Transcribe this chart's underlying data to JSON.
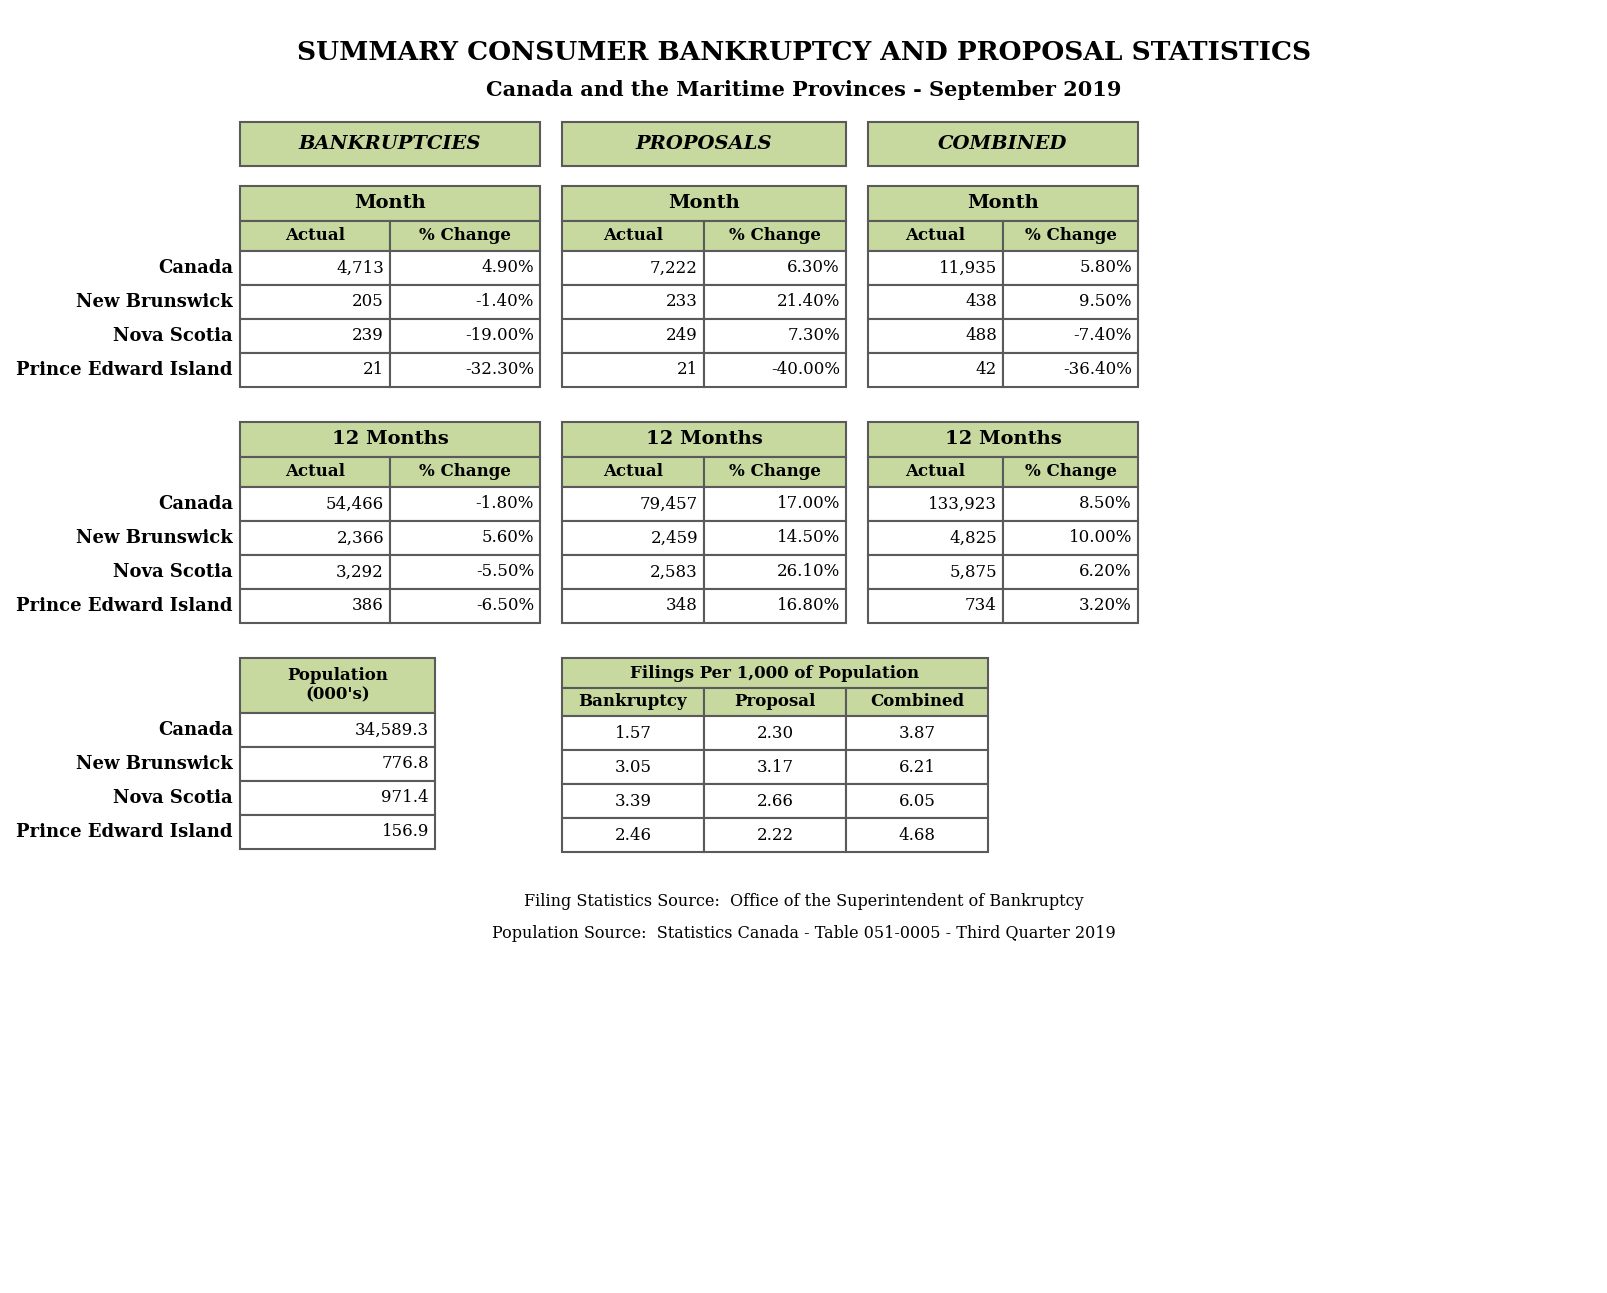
{
  "title1": "SUMMARY CONSUMER BANKRUPTCY AND PROPOSAL STATISTICS",
  "title2": "Canada and the Maritime Provinces - September 2019",
  "bg_color": "#ffffff",
  "green": "#c8d9a0",
  "white": "#ffffff",
  "border": "#5a5a5a",
  "section_headers": [
    "BANKRUPTCIES",
    "PROPOSALS",
    "COMBINED"
  ],
  "row_labels": [
    "Canada",
    "New Brunswick",
    "Nova Scotia",
    "Prince Edward Island"
  ],
  "month_bankruptcies": [
    [
      "4,713",
      "4.90%"
    ],
    [
      "205",
      "-1.40%"
    ],
    [
      "239",
      "-19.00%"
    ],
    [
      "21",
      "-32.30%"
    ]
  ],
  "month_proposals": [
    [
      "7,222",
      "6.30%"
    ],
    [
      "233",
      "21.40%"
    ],
    [
      "249",
      "7.30%"
    ],
    [
      "21",
      "-40.00%"
    ]
  ],
  "month_combined": [
    [
      "11,935",
      "5.80%"
    ],
    [
      "438",
      "9.50%"
    ],
    [
      "488",
      "-7.40%"
    ],
    [
      "42",
      "-36.40%"
    ]
  ],
  "twelve_bankruptcies": [
    [
      "54,466",
      "-1.80%"
    ],
    [
      "2,366",
      "5.60%"
    ],
    [
      "3,292",
      "-5.50%"
    ],
    [
      "386",
      "-6.50%"
    ]
  ],
  "twelve_proposals": [
    [
      "79,457",
      "17.00%"
    ],
    [
      "2,459",
      "14.50%"
    ],
    [
      "2,583",
      "26.10%"
    ],
    [
      "348",
      "16.80%"
    ]
  ],
  "twelve_combined": [
    [
      "133,923",
      "8.50%"
    ],
    [
      "4,825",
      "10.00%"
    ],
    [
      "5,875",
      "6.20%"
    ],
    [
      "734",
      "3.20%"
    ]
  ],
  "population_header": "Population\n(000's)",
  "filings_header": "Filings Per 1,000 of Population",
  "filings_subheaders": [
    "Bankruptcy",
    "Proposal",
    "Combined"
  ],
  "population": [
    "34,589.3",
    "776.8",
    "971.4",
    "156.9"
  ],
  "filings_bankruptcy": [
    "1.57",
    "3.05",
    "3.39",
    "2.46"
  ],
  "filings_proposal": [
    "2.30",
    "3.17",
    "2.66",
    "2.22"
  ],
  "filings_combined": [
    "3.87",
    "6.21",
    "6.05",
    "4.68"
  ],
  "footer1": "Filing Statistics Source:  Office of the Superintendent of Bankruptcy",
  "footer2": "Population Source:  Statistics Canada - Table 051-0005 - Third Quarter 2019"
}
